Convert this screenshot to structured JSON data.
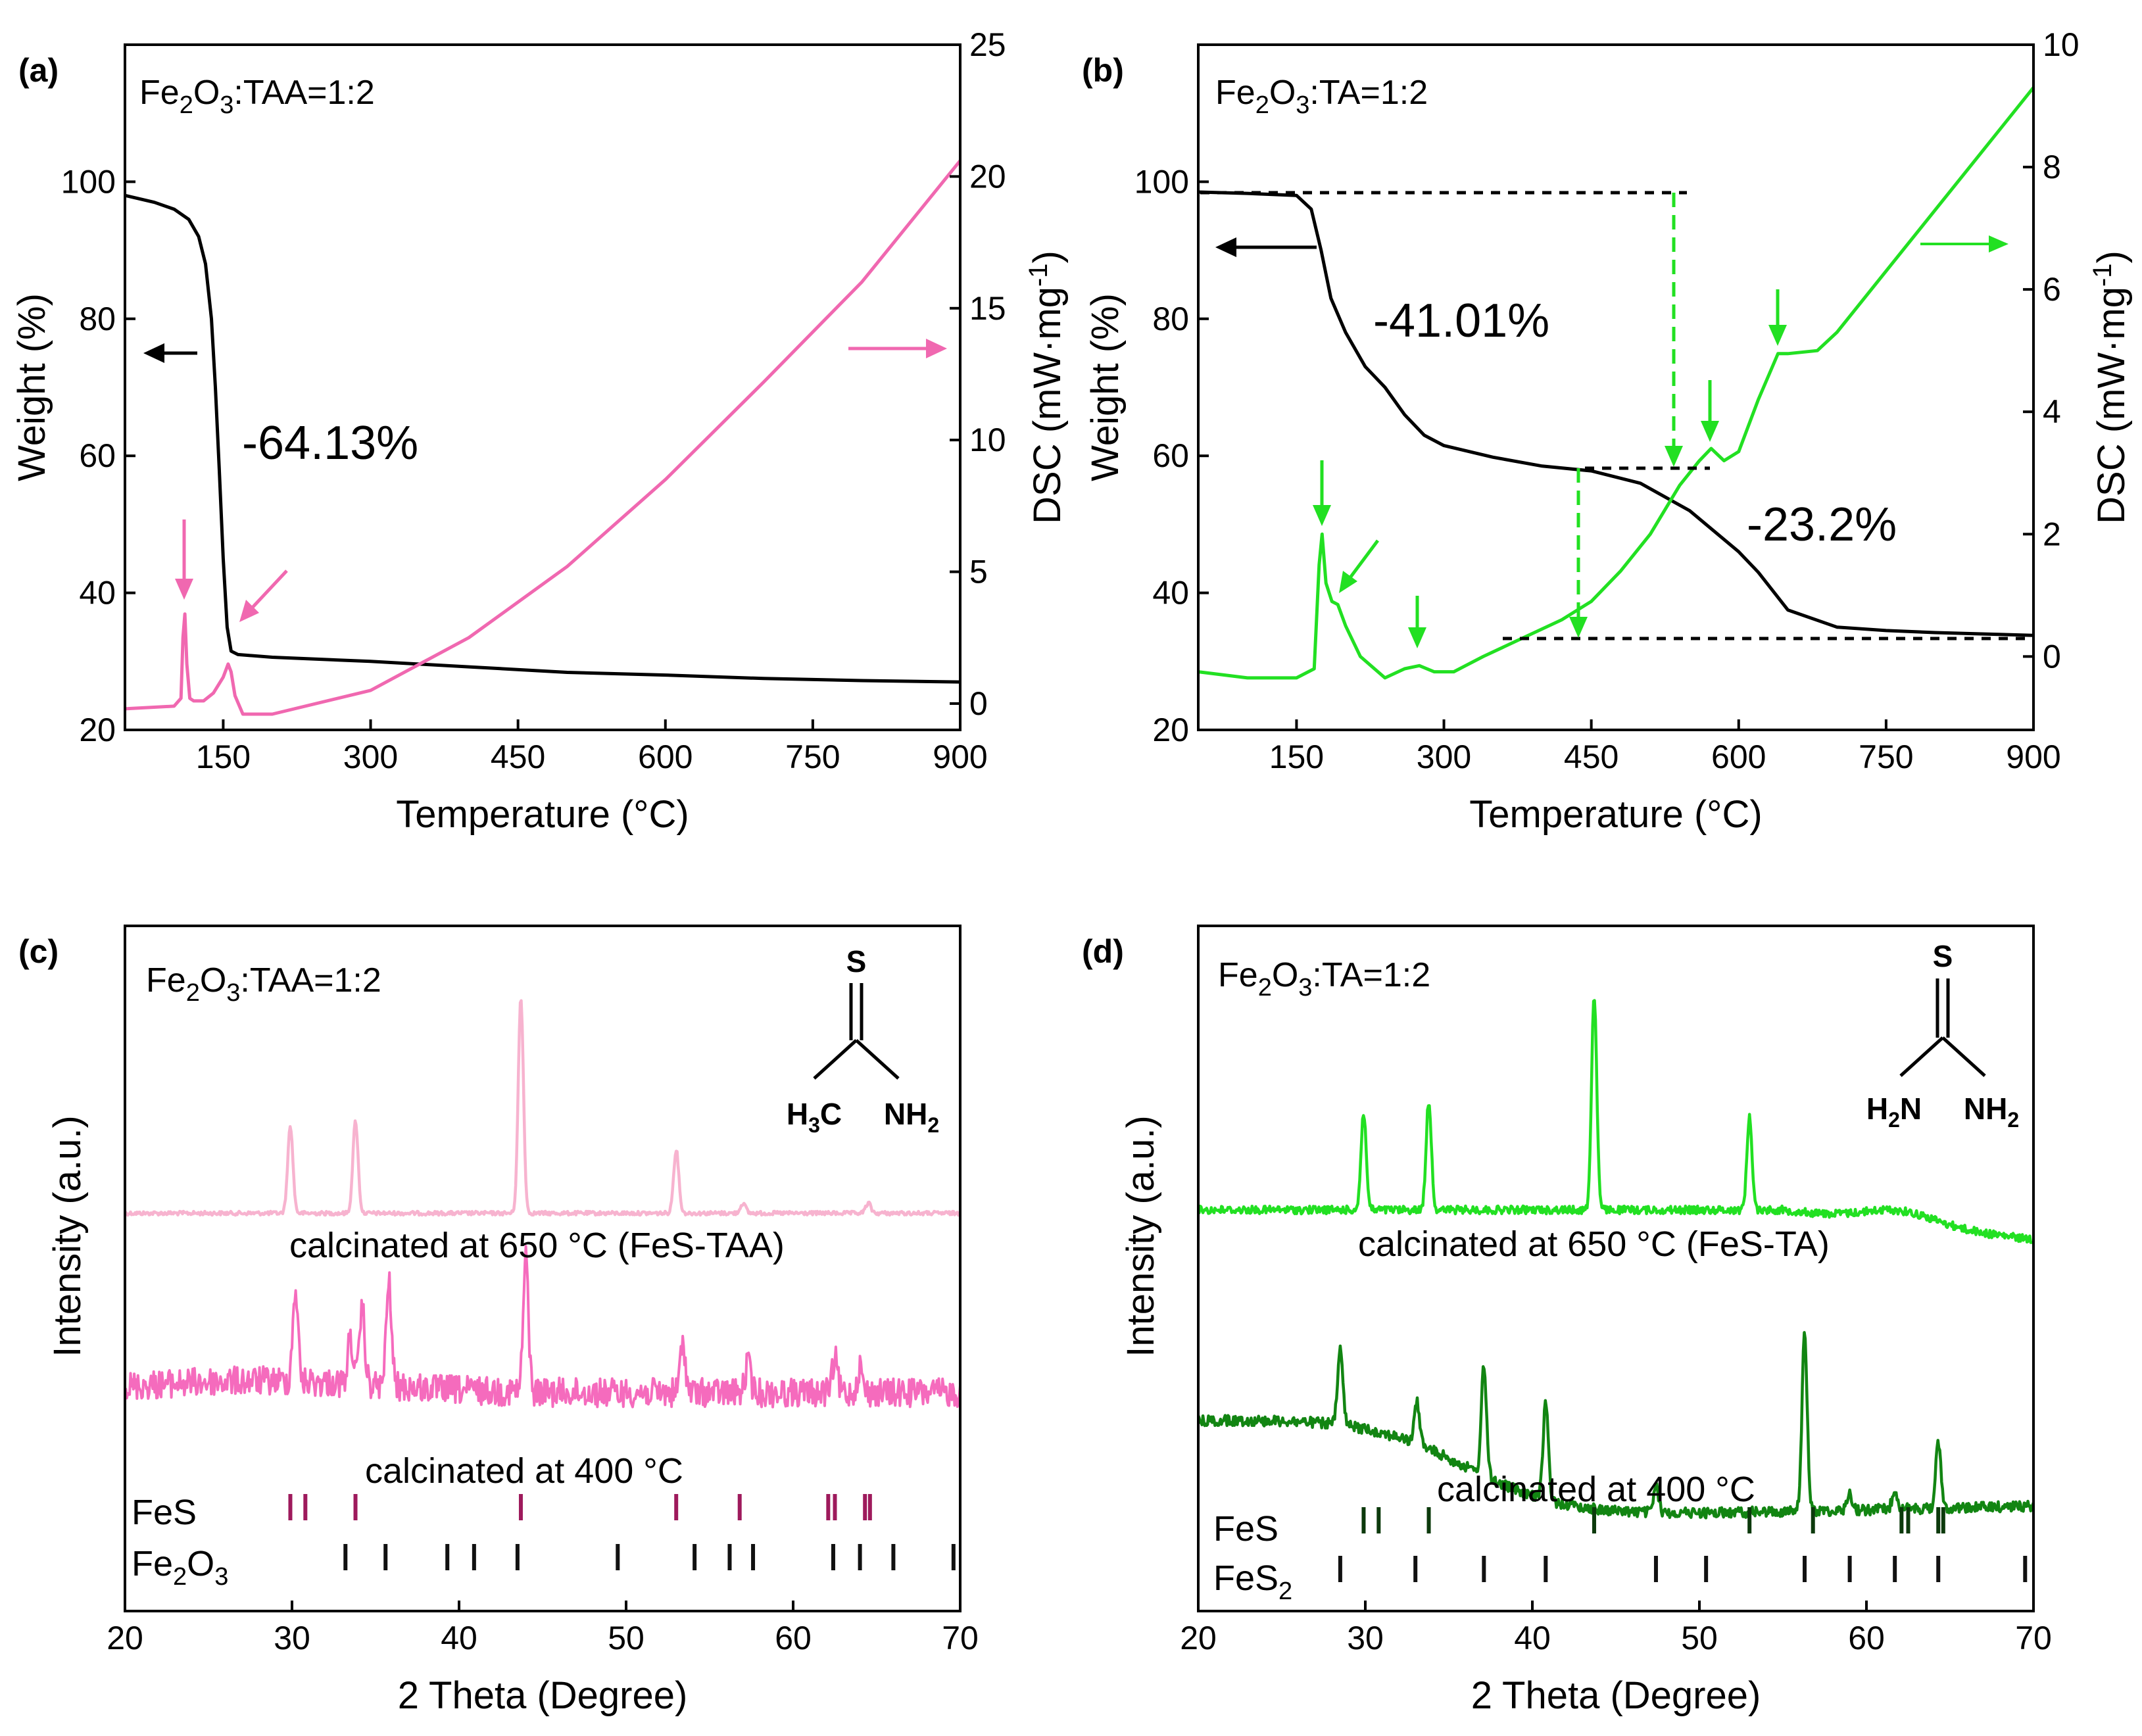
{
  "chart_data": [
    {
      "panel": "(a)",
      "type": "line",
      "sample": {
        "pre": "Fe",
        "s1": "2",
        "mid": "O",
        "s2": "3",
        "post": ":TAA=1:2"
      },
      "xlabel": "Temperature (°C)",
      "ylabel_left": "Weight (%)",
      "ylabel_right": "DSC (mW·mg",
      "ylabel_right_sup": "-1",
      "ylabel_right_close": ")",
      "xlim": [
        50,
        900
      ],
      "ylim_left": [
        20,
        120
      ],
      "ylim_right": [
        -1,
        25
      ],
      "xticks": [
        150,
        300,
        450,
        600,
        750,
        900
      ],
      "yticks_left": [
        20,
        40,
        60,
        80,
        100
      ],
      "yticks_right": [
        0,
        5,
        10,
        15,
        20,
        25
      ],
      "xtick_labels": [
        "150",
        "300",
        "450",
        "600",
        "750",
        "900"
      ],
      "ytick_left_labels": [
        "20",
        "40",
        "60",
        "80",
        "100"
      ],
      "ytick_right_labels": [
        "0",
        "5",
        "10",
        "15",
        "20",
        "25"
      ],
      "annotations": [
        "-64.13%"
      ],
      "series": [
        {
          "name": "Weight",
          "axis": "left",
          "color": "#000000",
          "x": [
            50,
            80,
            100,
            115,
            125,
            132,
            138,
            142,
            146,
            150,
            154,
            158,
            165,
            200,
            300,
            400,
            500,
            600,
            700,
            800,
            900
          ],
          "y": [
            98,
            97,
            96,
            94.5,
            92,
            88,
            80,
            70,
            58,
            45,
            35,
            31.5,
            31,
            30.6,
            30,
            29.2,
            28.4,
            28,
            27.5,
            27.2,
            27
          ]
        },
        {
          "name": "DSC",
          "axis": "right",
          "color": "#f068b0",
          "x": [
            50,
            100,
            107,
            109,
            111,
            113,
            116,
            120,
            130,
            140,
            150,
            155,
            158,
            162,
            170,
            200,
            300,
            400,
            500,
            600,
            700,
            800,
            900
          ],
          "y": [
            -0.2,
            -0.1,
            0.2,
            2.5,
            3.4,
            1.5,
            0.2,
            0.1,
            0.1,
            0.4,
            1.0,
            1.5,
            1.2,
            0.3,
            -0.4,
            -0.4,
            0.5,
            2.5,
            5.2,
            8.5,
            12.2,
            16,
            20.6
          ]
        }
      ]
    },
    {
      "panel": "(b)",
      "type": "line",
      "sample": {
        "pre": "Fe",
        "s1": "2",
        "mid": "O",
        "s2": "3",
        "post": ":TA=1:2"
      },
      "xlabel": "Temperature (°C)",
      "ylabel_left": "Weight (%)",
      "ylabel_right": "DSC (mW·mg",
      "ylabel_right_sup": "-1",
      "ylabel_right_close": ")",
      "xlim": [
        50,
        900
      ],
      "ylim_left": [
        20,
        120
      ],
      "ylim_right": [
        -1.2,
        10
      ],
      "xticks": [
        150,
        300,
        450,
        600,
        750,
        900
      ],
      "yticks_left": [
        20,
        40,
        60,
        80,
        100
      ],
      "yticks_right": [
        0,
        2,
        4,
        6,
        8,
        10
      ],
      "xtick_labels": [
        "150",
        "300",
        "450",
        "600",
        "750",
        "900"
      ],
      "ytick_left_labels": [
        "20",
        "40",
        "60",
        "80",
        "100"
      ],
      "ytick_right_labels": [
        "0",
        "2",
        "4",
        "6",
        "8",
        "10"
      ],
      "annotations": [
        "-41.01%",
        "-23.2%"
      ],
      "series": [
        {
          "name": "Weight",
          "axis": "left",
          "color": "#000000",
          "x": [
            50,
            100,
            150,
            165,
            175,
            185,
            200,
            220,
            240,
            260,
            280,
            300,
            350,
            400,
            450,
            500,
            550,
            600,
            620,
            650,
            700,
            750,
            800,
            850,
            900
          ],
          "y": [
            98.5,
            98.3,
            98,
            96,
            90,
            83,
            78,
            73,
            70,
            66,
            63,
            61.5,
            59.8,
            58.5,
            57.8,
            56,
            52,
            46,
            43,
            37.5,
            35,
            34.5,
            34.2,
            34,
            33.8
          ]
        },
        {
          "name": "DSC",
          "axis": "right",
          "color": "#22e022",
          "x": [
            50,
            100,
            150,
            168,
            173,
            176,
            180,
            186,
            192,
            200,
            215,
            240,
            260,
            275,
            290,
            310,
            340,
            380,
            420,
            450,
            480,
            510,
            540,
            560,
            572,
            585,
            600,
            620,
            640,
            650,
            680,
            700,
            750,
            800,
            850,
            900
          ],
          "y": [
            -0.25,
            -0.35,
            -0.35,
            -0.2,
            1.5,
            2.0,
            1.2,
            0.9,
            0.85,
            0.5,
            0.0,
            -0.35,
            -0.2,
            -0.15,
            -0.25,
            -0.25,
            0.0,
            0.3,
            0.6,
            0.9,
            1.4,
            2.0,
            2.8,
            3.2,
            3.4,
            3.2,
            3.35,
            4.2,
            4.95,
            4.95,
            5.0,
            5.3,
            6.3,
            7.3,
            8.3,
            9.3
          ]
        }
      ]
    },
    {
      "panel": "(c)",
      "type": "line",
      "sample": {
        "pre": "Fe",
        "s1": "2",
        "mid": "O",
        "s2": "3",
        "post": ":TAA=1:2"
      },
      "xlabel": "2 Theta (Degree)",
      "ylabel": "Intensity (a.u.)",
      "xlim": [
        20,
        70
      ],
      "xticks": [
        20,
        30,
        40,
        50,
        60,
        70
      ],
      "xtick_labels": [
        "20",
        "30",
        "40",
        "50",
        "60",
        "70"
      ],
      "curve_labels": [
        "calcinated at 650 °C (FeS-TAA)",
        "calcinated at 400 °C"
      ],
      "series": [
        {
          "name": "calcinated at 650 °C (FeS-TAA)",
          "color": "#f7b3cf",
          "peaks": [
            [
              29.9,
              52
            ],
            [
              33.8,
              55
            ],
            [
              43.7,
              128
            ],
            [
              53.0,
              38
            ],
            [
              57.0,
              6
            ],
            [
              64.5,
              6
            ]
          ]
        },
        {
          "name": "calcinated at 400 °C",
          "color": "#f56bbd",
          "peaks": [
            [
              30.2,
              55
            ],
            [
              33.5,
              28
            ],
            [
              34.2,
              45
            ],
            [
              35.8,
              62
            ],
            [
              44.0,
              80
            ],
            [
              53.4,
              30
            ],
            [
              57.3,
              18
            ],
            [
              62.5,
              20
            ],
            [
              64.0,
              15
            ]
          ]
        }
      ],
      "reference": [
        {
          "name": "FeS",
          "pre": "FeS",
          "sub": "",
          "color": "#9e1a5c",
          "positions": [
            29.9,
            30.8,
            33.8,
            43.7,
            53.0,
            56.8,
            62.1,
            62.5,
            64.3,
            64.6
          ]
        },
        {
          "name": "Fe2O3",
          "pre": "Fe",
          "sub": "2",
          "mid": "O",
          "sub2": "3",
          "color": "#111111",
          "positions": [
            33.2,
            35.6,
            39.3,
            40.9,
            43.5,
            49.5,
            54.1,
            56.2,
            57.6,
            62.4,
            64.0,
            66.0,
            69.6
          ]
        }
      ]
    },
    {
      "panel": "(d)",
      "type": "line",
      "sample": {
        "pre": "Fe",
        "s1": "2",
        "mid": "O",
        "s2": "3",
        "post": ":TA=1:2"
      },
      "xlabel": "2 Theta (Degree)",
      "ylabel": "Intensity (a.u.)",
      "xlim": [
        20,
        70
      ],
      "xticks": [
        20,
        30,
        40,
        50,
        60,
        70
      ],
      "xtick_labels": [
        "20",
        "30",
        "40",
        "50",
        "60",
        "70"
      ],
      "curve_labels": [
        "calcinated at 650 °C (FeS-TA)",
        "calcinated at 400 °C"
      ],
      "series": [
        {
          "name": "calcinated at 650 °C (FeS-TA)",
          "color": "#22e022",
          "peaks": [
            [
              29.9,
              58
            ],
            [
              33.8,
              65
            ],
            [
              43.7,
              128
            ],
            [
              53.0,
              55
            ]
          ]
        },
        {
          "name": "calcinated at 400 °C",
          "color": "#128512",
          "peaks": [
            [
              28.5,
              45
            ],
            [
              33.1,
              25
            ],
            [
              37.1,
              65
            ],
            [
              40.8,
              58
            ],
            [
              47.4,
              15
            ],
            [
              56.3,
              105
            ],
            [
              59.0,
              10
            ],
            [
              61.7,
              12
            ],
            [
              64.3,
              38
            ]
          ]
        }
      ],
      "reference": [
        {
          "name": "FeS",
          "pre": "FeS",
          "sub": "",
          "color": "#0c3a0c",
          "positions": [
            29.9,
            30.8,
            33.8,
            43.7,
            53.0,
            56.8,
            62.1,
            62.5,
            64.3,
            64.6
          ]
        },
        {
          "name": "FeS2",
          "pre": "FeS",
          "sub": "2",
          "color": "#111111",
          "positions": [
            28.5,
            33.0,
            37.1,
            40.8,
            47.4,
            50.4,
            56.3,
            59.0,
            61.7,
            64.3,
            69.5
          ]
        }
      ]
    }
  ],
  "molecules": {
    "taa": {
      "top": "S",
      "left_main": "H",
      "left_sub": "3",
      "left_tail": "C",
      "right_main": "NH",
      "right_sub": "2"
    },
    "ta": {
      "top": "S",
      "left_main": "H",
      "left_sub": "2",
      "left_tail": "N",
      "right_main": "NH",
      "right_sub": "2"
    }
  }
}
